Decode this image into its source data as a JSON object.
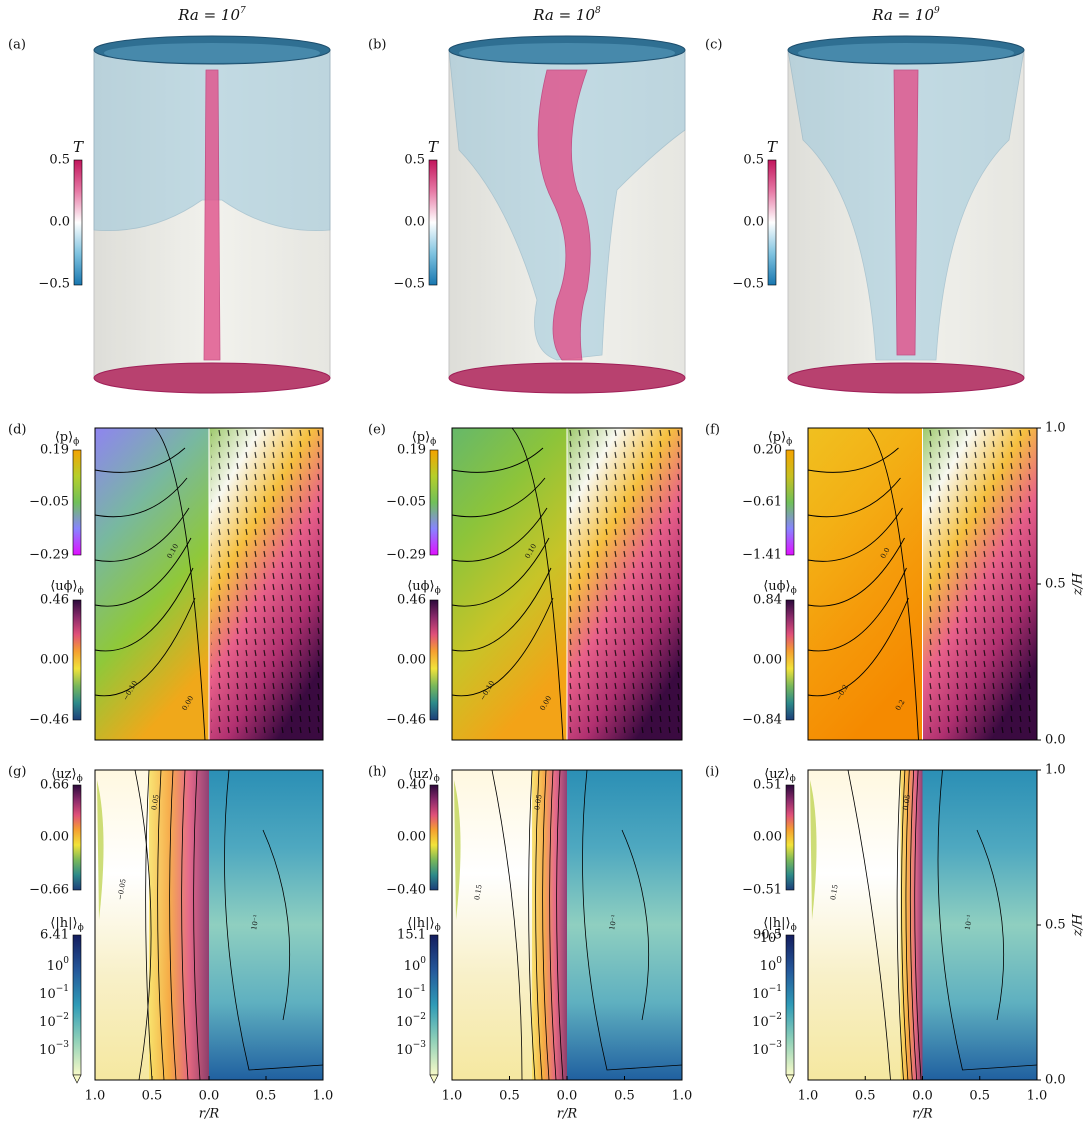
{
  "columns": [
    {
      "title": {
        "text": "Ra = 10",
        "exp": "7"
      },
      "render": {
        "label": "(a)",
        "colorbar": {
          "name": "T",
          "ticks": [
            "0.5",
            "0.0",
            "−0.5"
          ]
        }
      },
      "mean_flow": {
        "label": "(d)",
        "p": {
          "name": "⟨p⟩",
          "sub": "ϕ",
          "ticks": [
            "0.19",
            "−0.05",
            "−0.29"
          ]
        },
        "u": {
          "name": "⟨uϕ⟩",
          "sub": "ϕ",
          "ticks": [
            "0.46",
            "0.00",
            "−0.46"
          ]
        },
        "contours": [
          "−0.10",
          "0.10",
          "0.00"
        ]
      },
      "helicity": {
        "label": "(g)",
        "u": {
          "name": "⟨uz⟩",
          "sub": "ϕ",
          "ticks": [
            "0.66",
            "0.00",
            "−0.66"
          ]
        },
        "h": {
          "name": "⟨|h|⟩",
          "sub": "ϕ",
          "ticks": [
            "6.41",
            {
              "base": "10",
              "exp": "0"
            },
            {
              "base": "10",
              "exp": "−1"
            },
            {
              "base": "10",
              "exp": "−2"
            },
            {
              "base": "10",
              "exp": "−3"
            }
          ]
        },
        "contours": [
          "0.05",
          "−0.05",
          "10⁻¹"
        ]
      }
    },
    {
      "title": {
        "text": "Ra = 10",
        "exp": "8"
      },
      "render": {
        "label": "(b)",
        "colorbar": {
          "name": "T",
          "ticks": [
            "0.5",
            "0.0",
            "−0.5"
          ]
        }
      },
      "mean_flow": {
        "label": "(e)",
        "p": {
          "name": "⟨p⟩",
          "sub": "ϕ",
          "ticks": [
            "0.19",
            "−0.05",
            "−0.29"
          ]
        },
        "u": {
          "name": "⟨uϕ⟩",
          "sub": "ϕ",
          "ticks": [
            "0.46",
            "0.00",
            "−0.46"
          ]
        },
        "contours": [
          "−0.10",
          "0.10",
          "0.00"
        ]
      },
      "helicity": {
        "label": "(h)",
        "u": {
          "name": "⟨uz⟩",
          "sub": "ϕ",
          "ticks": [
            "0.40",
            "0.00",
            "−0.40"
          ]
        },
        "h": {
          "name": "⟨|h|⟩",
          "sub": "ϕ",
          "ticks": [
            "15.1",
            {
              "base": "10",
              "exp": "0"
            },
            {
              "base": "10",
              "exp": "−1"
            },
            {
              "base": "10",
              "exp": "−2"
            },
            {
              "base": "10",
              "exp": "−3"
            }
          ]
        },
        "contours": [
          "0.05",
          "0.15",
          "10⁻¹"
        ]
      }
    },
    {
      "title": {
        "text": "Ra = 10",
        "exp": "9"
      },
      "render": {
        "label": "(c)",
        "colorbar": {
          "name": "T",
          "ticks": [
            "0.5",
            "0.0",
            "−0.5"
          ]
        }
      },
      "mean_flow": {
        "label": "(f)",
        "p": {
          "name": "⟨p⟩",
          "sub": "ϕ",
          "ticks": [
            "0.20",
            "−0.61",
            "−1.41"
          ]
        },
        "u": {
          "name": "⟨uϕ⟩",
          "sub": "ϕ",
          "ticks": [
            "0.84",
            "0.00",
            "−0.84"
          ]
        },
        "contours": [
          "−0.2",
          "0.0",
          "0.2"
        ]
      },
      "helicity": {
        "label": "(i)",
        "u": {
          "name": "⟨uz⟩",
          "sub": "ϕ",
          "ticks": [
            "0.51",
            "0.00",
            "−0.51"
          ]
        },
        "h": {
          "name": "⟨|h|⟩",
          "sub": "ϕ",
          "ticks": [
            "90.5",
            {
              "base": "10",
              "exp": "1"
            },
            {
              "base": "10",
              "exp": "0"
            },
            {
              "base": "10",
              "exp": "−1"
            },
            {
              "base": "10",
              "exp": "−2"
            },
            {
              "base": "10",
              "exp": "−3"
            }
          ]
        },
        "contours": [
          "0.05",
          "0.15",
          "10⁻¹"
        ]
      }
    }
  ],
  "axes": {
    "r_ticks": [
      "1.0",
      "0.5",
      "0.0",
      "0.5",
      "1.0"
    ],
    "r_label": "r/R",
    "z_ticks": [
      "1.0",
      "0.5",
      "0.0"
    ],
    "z_label": "z/H"
  }
}
